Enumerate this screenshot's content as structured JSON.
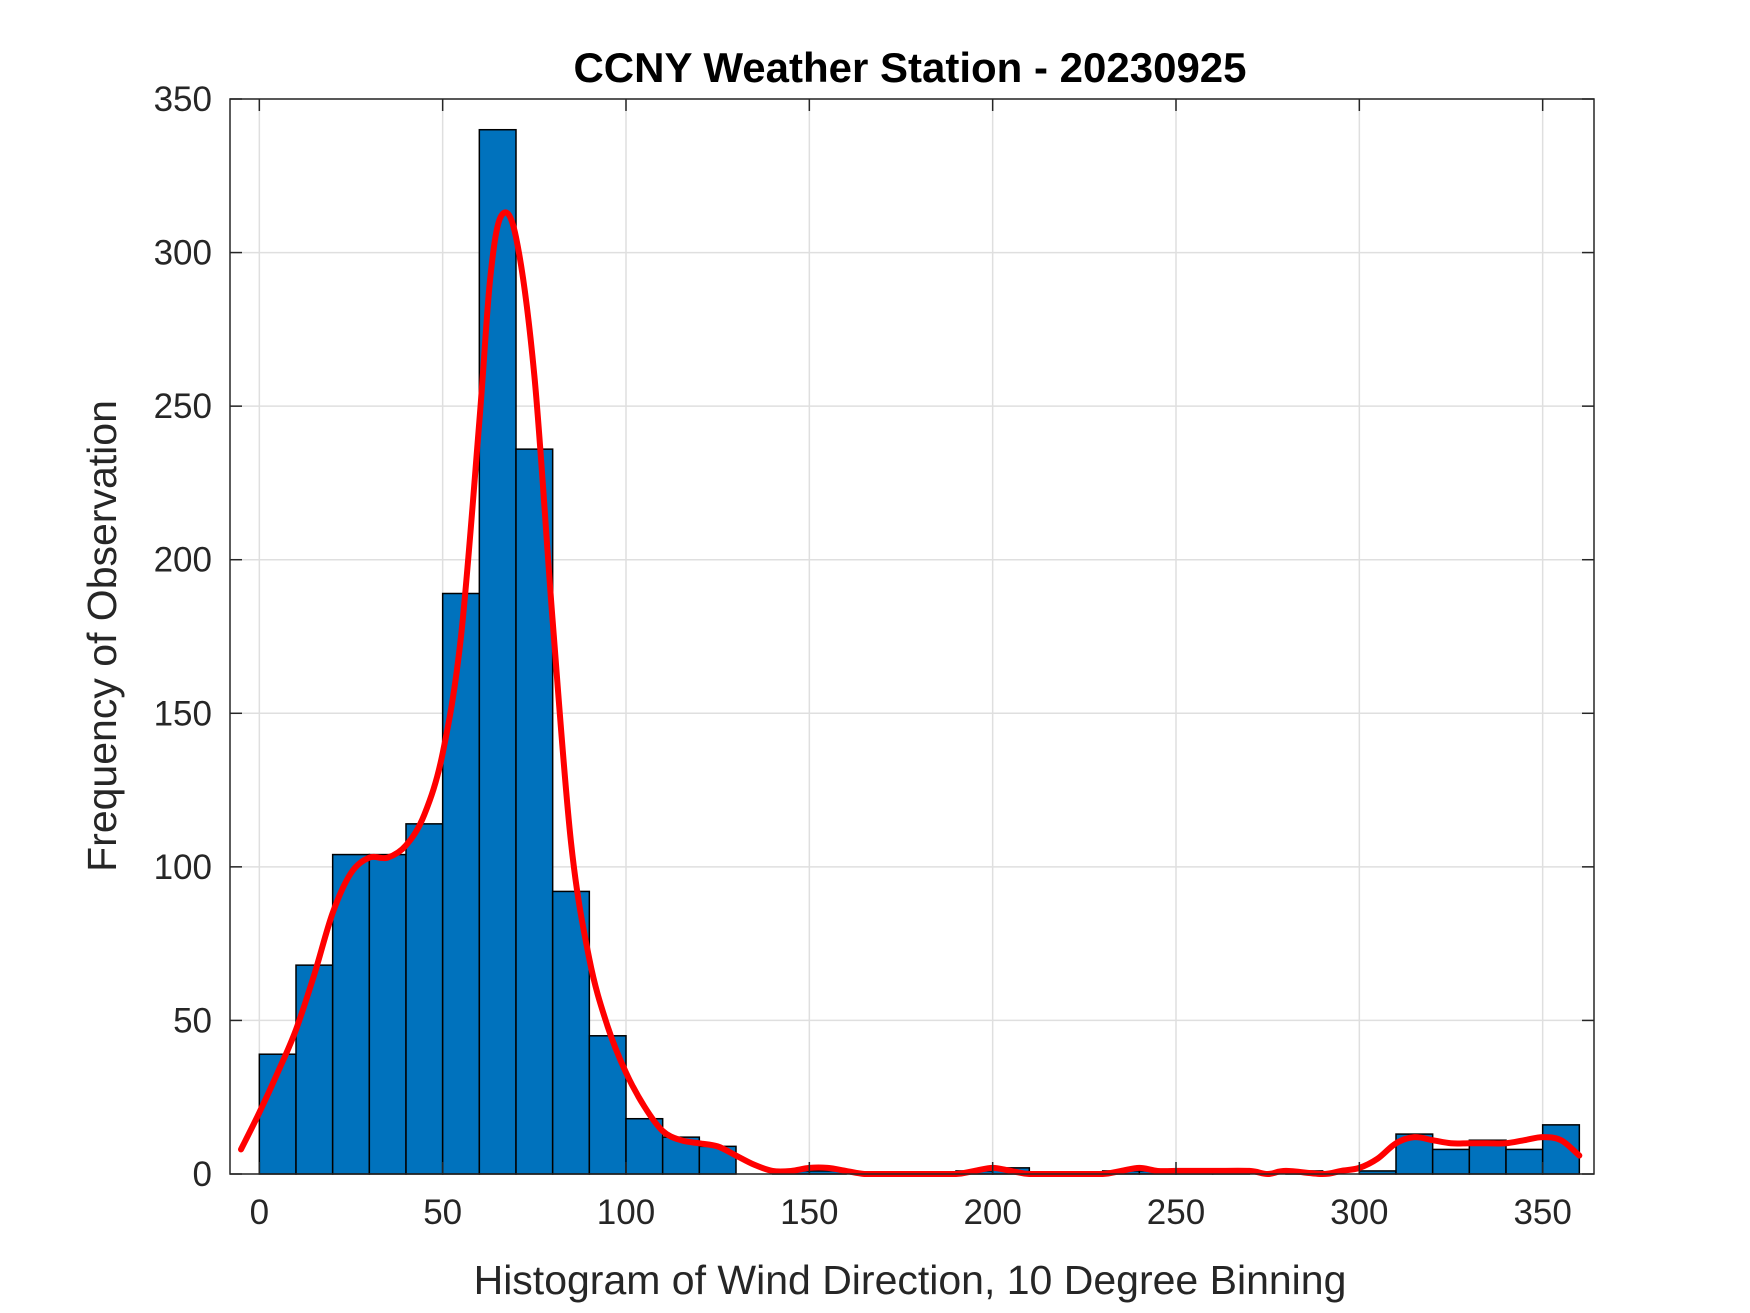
{
  "chart_data": {
    "type": "bar",
    "title": "CCNY Weather Station - 20230925",
    "xlabel": "Histogram of Wind Direction, 10 Degree Binning",
    "ylabel": "Frequency of Observation",
    "xlim": [
      -8,
      364
    ],
    "ylim": [
      0,
      350
    ],
    "xticks": [
      0,
      50,
      100,
      150,
      200,
      250,
      300,
      350
    ],
    "yticks": [
      0,
      50,
      100,
      150,
      200,
      250,
      300,
      350
    ],
    "grid": true,
    "bin_width": 10,
    "bin_edges": [
      0,
      10,
      20,
      30,
      40,
      50,
      60,
      70,
      80,
      90,
      100,
      110,
      120,
      130,
      140,
      150,
      160,
      170,
      180,
      190,
      200,
      210,
      220,
      230,
      240,
      250,
      260,
      270,
      280,
      290,
      300,
      310,
      320,
      330,
      340,
      350,
      360
    ],
    "values": [
      39,
      68,
      104,
      104,
      114,
      189,
      340,
      236,
      92,
      45,
      18,
      12,
      9,
      0,
      1,
      1,
      0,
      0,
      0,
      1,
      2,
      0,
      0,
      1,
      1,
      1,
      1,
      0,
      1,
      0,
      1,
      13,
      8,
      11,
      8,
      16
    ],
    "bar_color": "#0072bd",
    "bar_edge_color": "#000000",
    "curve": {
      "color": "#ff0000",
      "points": [
        [
          -5,
          8
        ],
        [
          0,
          20
        ],
        [
          5,
          33
        ],
        [
          10,
          47
        ],
        [
          15,
          65
        ],
        [
          20,
          85
        ],
        [
          25,
          98
        ],
        [
          30,
          103
        ],
        [
          35,
          103
        ],
        [
          40,
          107
        ],
        [
          45,
          117
        ],
        [
          50,
          137
        ],
        [
          55,
          175
        ],
        [
          60,
          245
        ],
        [
          63,
          292
        ],
        [
          66,
          312
        ],
        [
          70,
          305
        ],
        [
          75,
          260
        ],
        [
          80,
          180
        ],
        [
          85,
          108
        ],
        [
          90,
          70
        ],
        [
          95,
          48
        ],
        [
          100,
          33
        ],
        [
          105,
          22
        ],
        [
          110,
          14
        ],
        [
          115,
          11
        ],
        [
          120,
          10
        ],
        [
          125,
          9
        ],
        [
          130,
          6
        ],
        [
          135,
          3
        ],
        [
          140,
          1
        ],
        [
          145,
          1
        ],
        [
          150,
          2
        ],
        [
          155,
          2
        ],
        [
          160,
          1
        ],
        [
          165,
          0
        ],
        [
          170,
          0
        ],
        [
          180,
          0
        ],
        [
          190,
          0
        ],
        [
          195,
          1
        ],
        [
          200,
          2
        ],
        [
          205,
          1
        ],
        [
          210,
          0
        ],
        [
          220,
          0
        ],
        [
          230,
          0
        ],
        [
          235,
          1
        ],
        [
          240,
          2
        ],
        [
          245,
          1
        ],
        [
          250,
          1
        ],
        [
          260,
          1
        ],
        [
          270,
          1
        ],
        [
          275,
          0
        ],
        [
          280,
          1
        ],
        [
          290,
          0
        ],
        [
          295,
          1
        ],
        [
          300,
          2
        ],
        [
          305,
          5
        ],
        [
          310,
          10
        ],
        [
          315,
          12
        ],
        [
          320,
          11
        ],
        [
          325,
          10
        ],
        [
          330,
          10
        ],
        [
          335,
          10
        ],
        [
          340,
          10
        ],
        [
          345,
          11
        ],
        [
          350,
          12
        ],
        [
          355,
          11
        ],
        [
          360,
          6
        ]
      ]
    }
  }
}
